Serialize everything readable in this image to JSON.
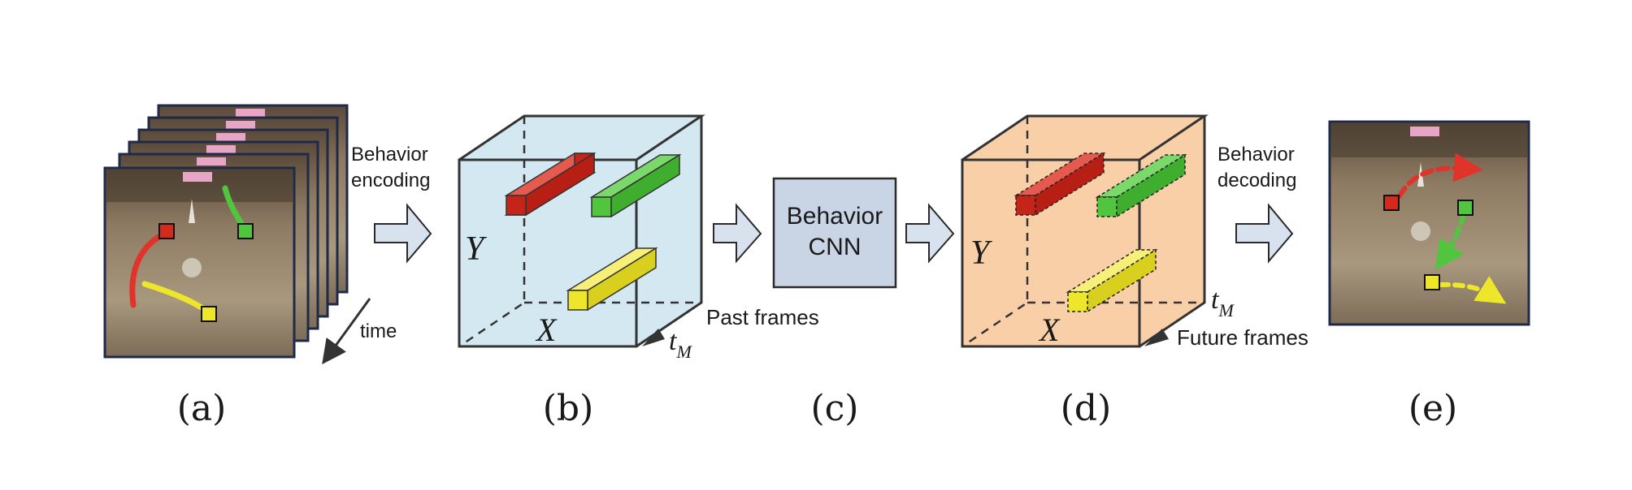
{
  "labels": {
    "encode_line1": "Behavior",
    "encode_line2": "encoding",
    "time": "time",
    "axis_y": "Y",
    "axis_x": "X",
    "t_main": "t",
    "t_sub": "M",
    "past_frames": "Past frames",
    "cnn_line1": "Behavior",
    "cnn_line2": "CNN",
    "future_frames": "Future frames",
    "decode_line1": "Behavior",
    "decode_line2": "decoding"
  },
  "captions": [
    "(a)",
    "(b)",
    "(c)",
    "(d)",
    "(e)"
  ],
  "colors": {
    "red": "#d42a1c",
    "green": "#52c53f",
    "yellow": "#eee62a",
    "cube_past": "#d3e8f0",
    "cube_future": "#f9cfa8",
    "cnn_box": "#c9d4e5",
    "arrow_fill": "#d8e1ee",
    "frame_border": "#1e2a48"
  }
}
